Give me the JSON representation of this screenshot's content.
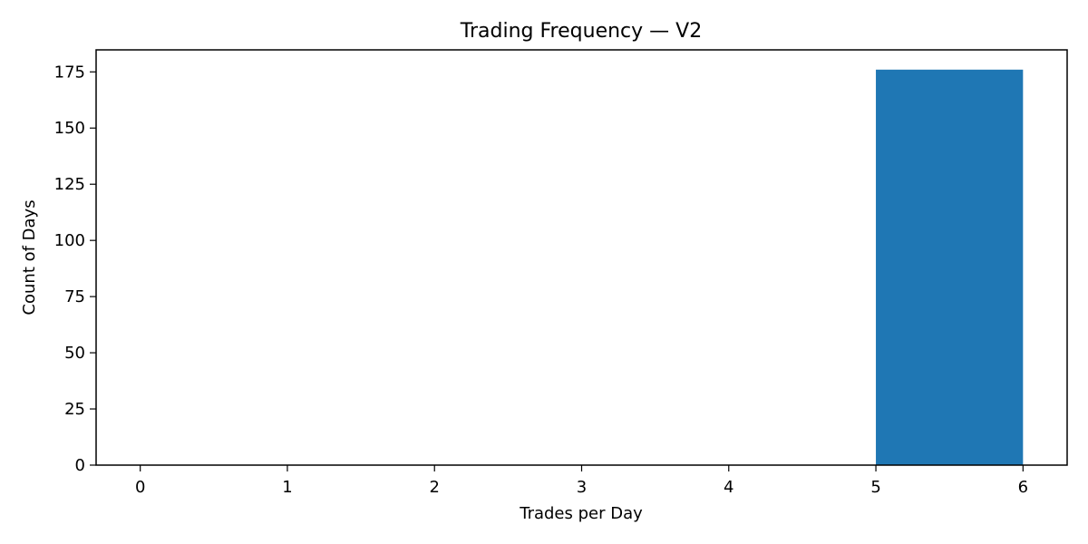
{
  "chart_data": {
    "type": "bar",
    "title": "Trading Frequency — V2",
    "xlabel": "Trades per Day",
    "ylabel": "Count of Days",
    "xlim": [
      -0.3,
      6.3
    ],
    "ylim": [
      0,
      184.8
    ],
    "x_ticks": [
      "0",
      "1",
      "2",
      "3",
      "4",
      "5",
      "6"
    ],
    "y_ticks": [
      "0",
      "25",
      "50",
      "75",
      "100",
      "125",
      "150",
      "175"
    ],
    "bins": [
      {
        "x_start": 5,
        "x_end": 6,
        "value": 176
      }
    ],
    "grid": false,
    "color": "#1f77b4"
  }
}
